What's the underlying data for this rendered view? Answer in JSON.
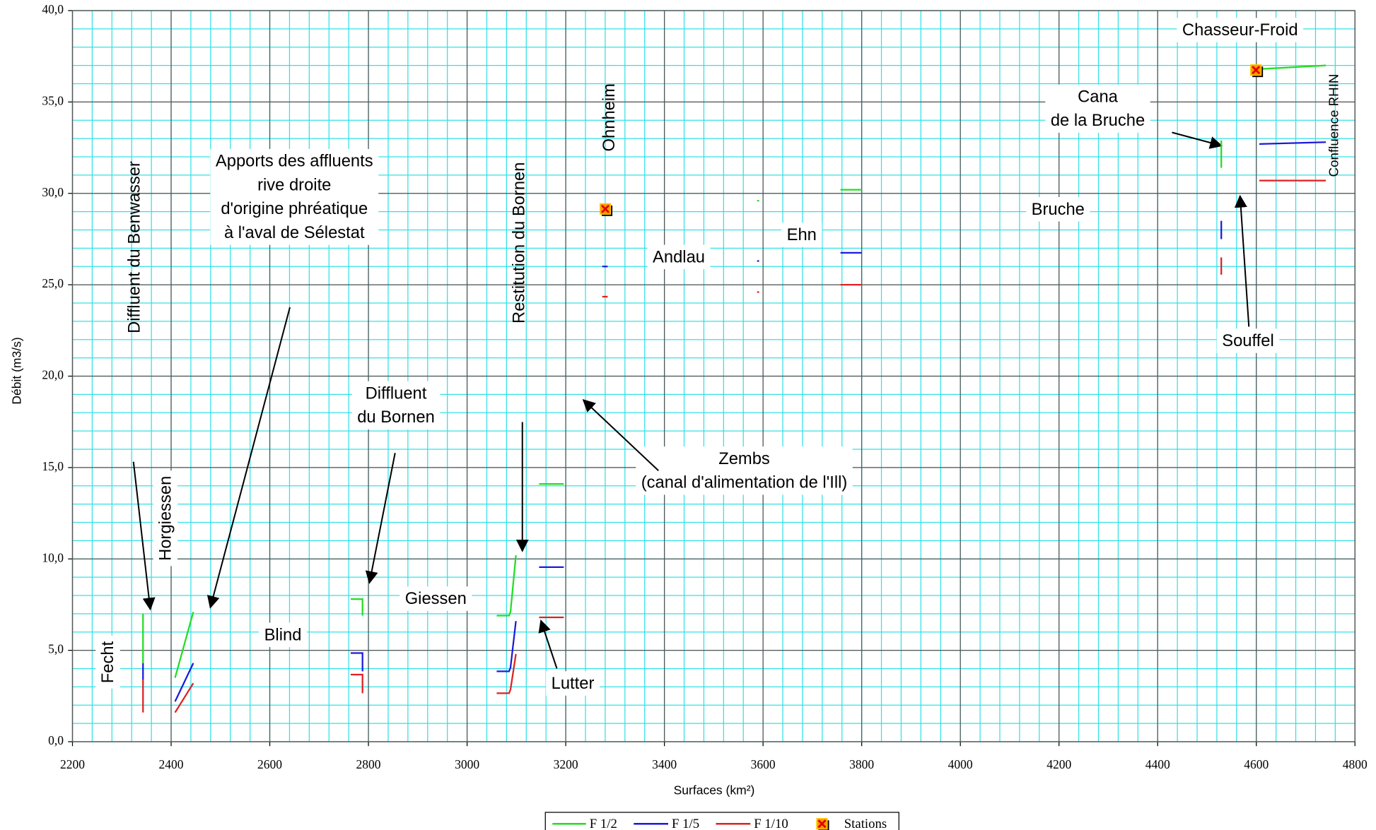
{
  "chart_data": {
    "type": "line",
    "x_label": "Surfaces (km²)",
    "y_label": "Débit (m3/s)",
    "xlim": [
      2200,
      4800
    ],
    "xticks": [
      2200,
      2400,
      2600,
      2800,
      3000,
      3200,
      3400,
      3600,
      3800,
      4000,
      4200,
      4400,
      4600,
      4800
    ],
    "ylim": [
      0,
      40
    ],
    "yticks": [
      {
        "value": 0,
        "label": "0,0"
      },
      {
        "value": 5,
        "label": "5,0"
      },
      {
        "value": 10,
        "label": "10,0"
      },
      {
        "value": 15,
        "label": "15,0"
      },
      {
        "value": 20,
        "label": "20,0"
      },
      {
        "value": 25,
        "label": "25,0"
      },
      {
        "value": 30,
        "label": "30,0"
      },
      {
        "value": 35,
        "label": "35,0"
      },
      {
        "value": 40,
        "label": "40,0"
      }
    ],
    "grid": true,
    "grid_color": "#555555",
    "minor_grid_color": "#33e0e6",
    "x_minor_step": 40,
    "y_minor_step": 1,
    "legend": "bottom",
    "series": [
      {
        "name": "F 1/2",
        "color": "#22dd22",
        "x": [
          2343,
          2343,
          null,
          2408,
          2445,
          null,
          2764,
          2788,
          2788,
          null,
          3060,
          3085,
          3088,
          3099,
          null,
          3146,
          3196,
          null,
          3588,
          3592,
          null,
          3757,
          3800,
          null,
          4529,
          4529,
          null,
          4606,
          4741
        ],
        "values": [
          7.0,
          4.3,
          null,
          3.5,
          7.1,
          null,
          7.8,
          7.8,
          6.9,
          null,
          6.9,
          6.9,
          7.1,
          10.2,
          null,
          14.1,
          14.1,
          null,
          29.6,
          29.6,
          null,
          30.2,
          30.2,
          null,
          32.9,
          31.4,
          null,
          36.8,
          37.0
        ]
      },
      {
        "name": "F 1/5",
        "color": "#1a1adc",
        "x": [
          2343,
          2343,
          null,
          2408,
          2445,
          null,
          2764,
          2788,
          2788,
          null,
          3060,
          3085,
          3088,
          3099,
          null,
          3146,
          3196,
          null,
          3274,
          3285,
          null,
          3588,
          3592,
          null,
          3757,
          3800,
          null,
          4529,
          4529,
          null,
          4606,
          4741
        ],
        "values": [
          4.3,
          3.4,
          null,
          2.2,
          4.3,
          null,
          4.85,
          4.85,
          3.85,
          null,
          3.85,
          3.85,
          4.05,
          6.6,
          null,
          9.55,
          9.55,
          null,
          26.0,
          26.0,
          null,
          26.3,
          26.3,
          null,
          26.75,
          26.75,
          null,
          28.5,
          27.5,
          null,
          32.7,
          32.8
        ]
      },
      {
        "name": "F 1/10",
        "color": "#e02020",
        "x": [
          2343,
          2343,
          null,
          2408,
          2445,
          null,
          2764,
          2788,
          2788,
          null,
          3060,
          3085,
          3088,
          3099,
          null,
          3146,
          3196,
          null,
          3274,
          3285,
          null,
          3588,
          3592,
          null,
          3757,
          3800,
          null,
          4529,
          4529,
          null,
          4606,
          4741
        ],
        "values": [
          3.4,
          1.6,
          null,
          1.6,
          3.2,
          null,
          3.67,
          3.67,
          2.65,
          null,
          2.65,
          2.65,
          2.85,
          4.8,
          null,
          6.8,
          6.8,
          null,
          24.35,
          24.35,
          null,
          24.6,
          24.6,
          null,
          25.0,
          25.0,
          null,
          26.5,
          25.55,
          null,
          30.7,
          30.7
        ]
      },
      {
        "name": "Stations",
        "type": "scatter",
        "color": "#ff9900",
        "x": [
          3282,
          4601
        ],
        "values": [
          29.1,
          36.7
        ]
      }
    ],
    "annotations": [
      [
        "Diffluent du Benwasser"
      ],
      [
        "Apports des affluents",
        "rive droite",
        "d'origine phréatique",
        "à l'aval de Sélestat"
      ],
      [
        "Restitution du Bornen"
      ],
      [
        "Ohnheim"
      ],
      [
        "Andlau"
      ],
      [
        "Ehn"
      ],
      [
        "Bruche"
      ],
      [
        "Cana",
        "de la Bruche"
      ],
      [
        "Chasseur-Froid"
      ],
      [
        "Confluence RHIN"
      ],
      [
        "Souffel"
      ],
      [
        "Zembs",
        "(canal d'alimentation de l'Ill)"
      ],
      [
        "Diffluent",
        "du Bornen"
      ],
      [
        "Giessen"
      ],
      [
        "Horgiessen"
      ],
      [
        "Blind"
      ],
      [
        "Fecht"
      ],
      [
        "Lutter"
      ]
    ]
  }
}
